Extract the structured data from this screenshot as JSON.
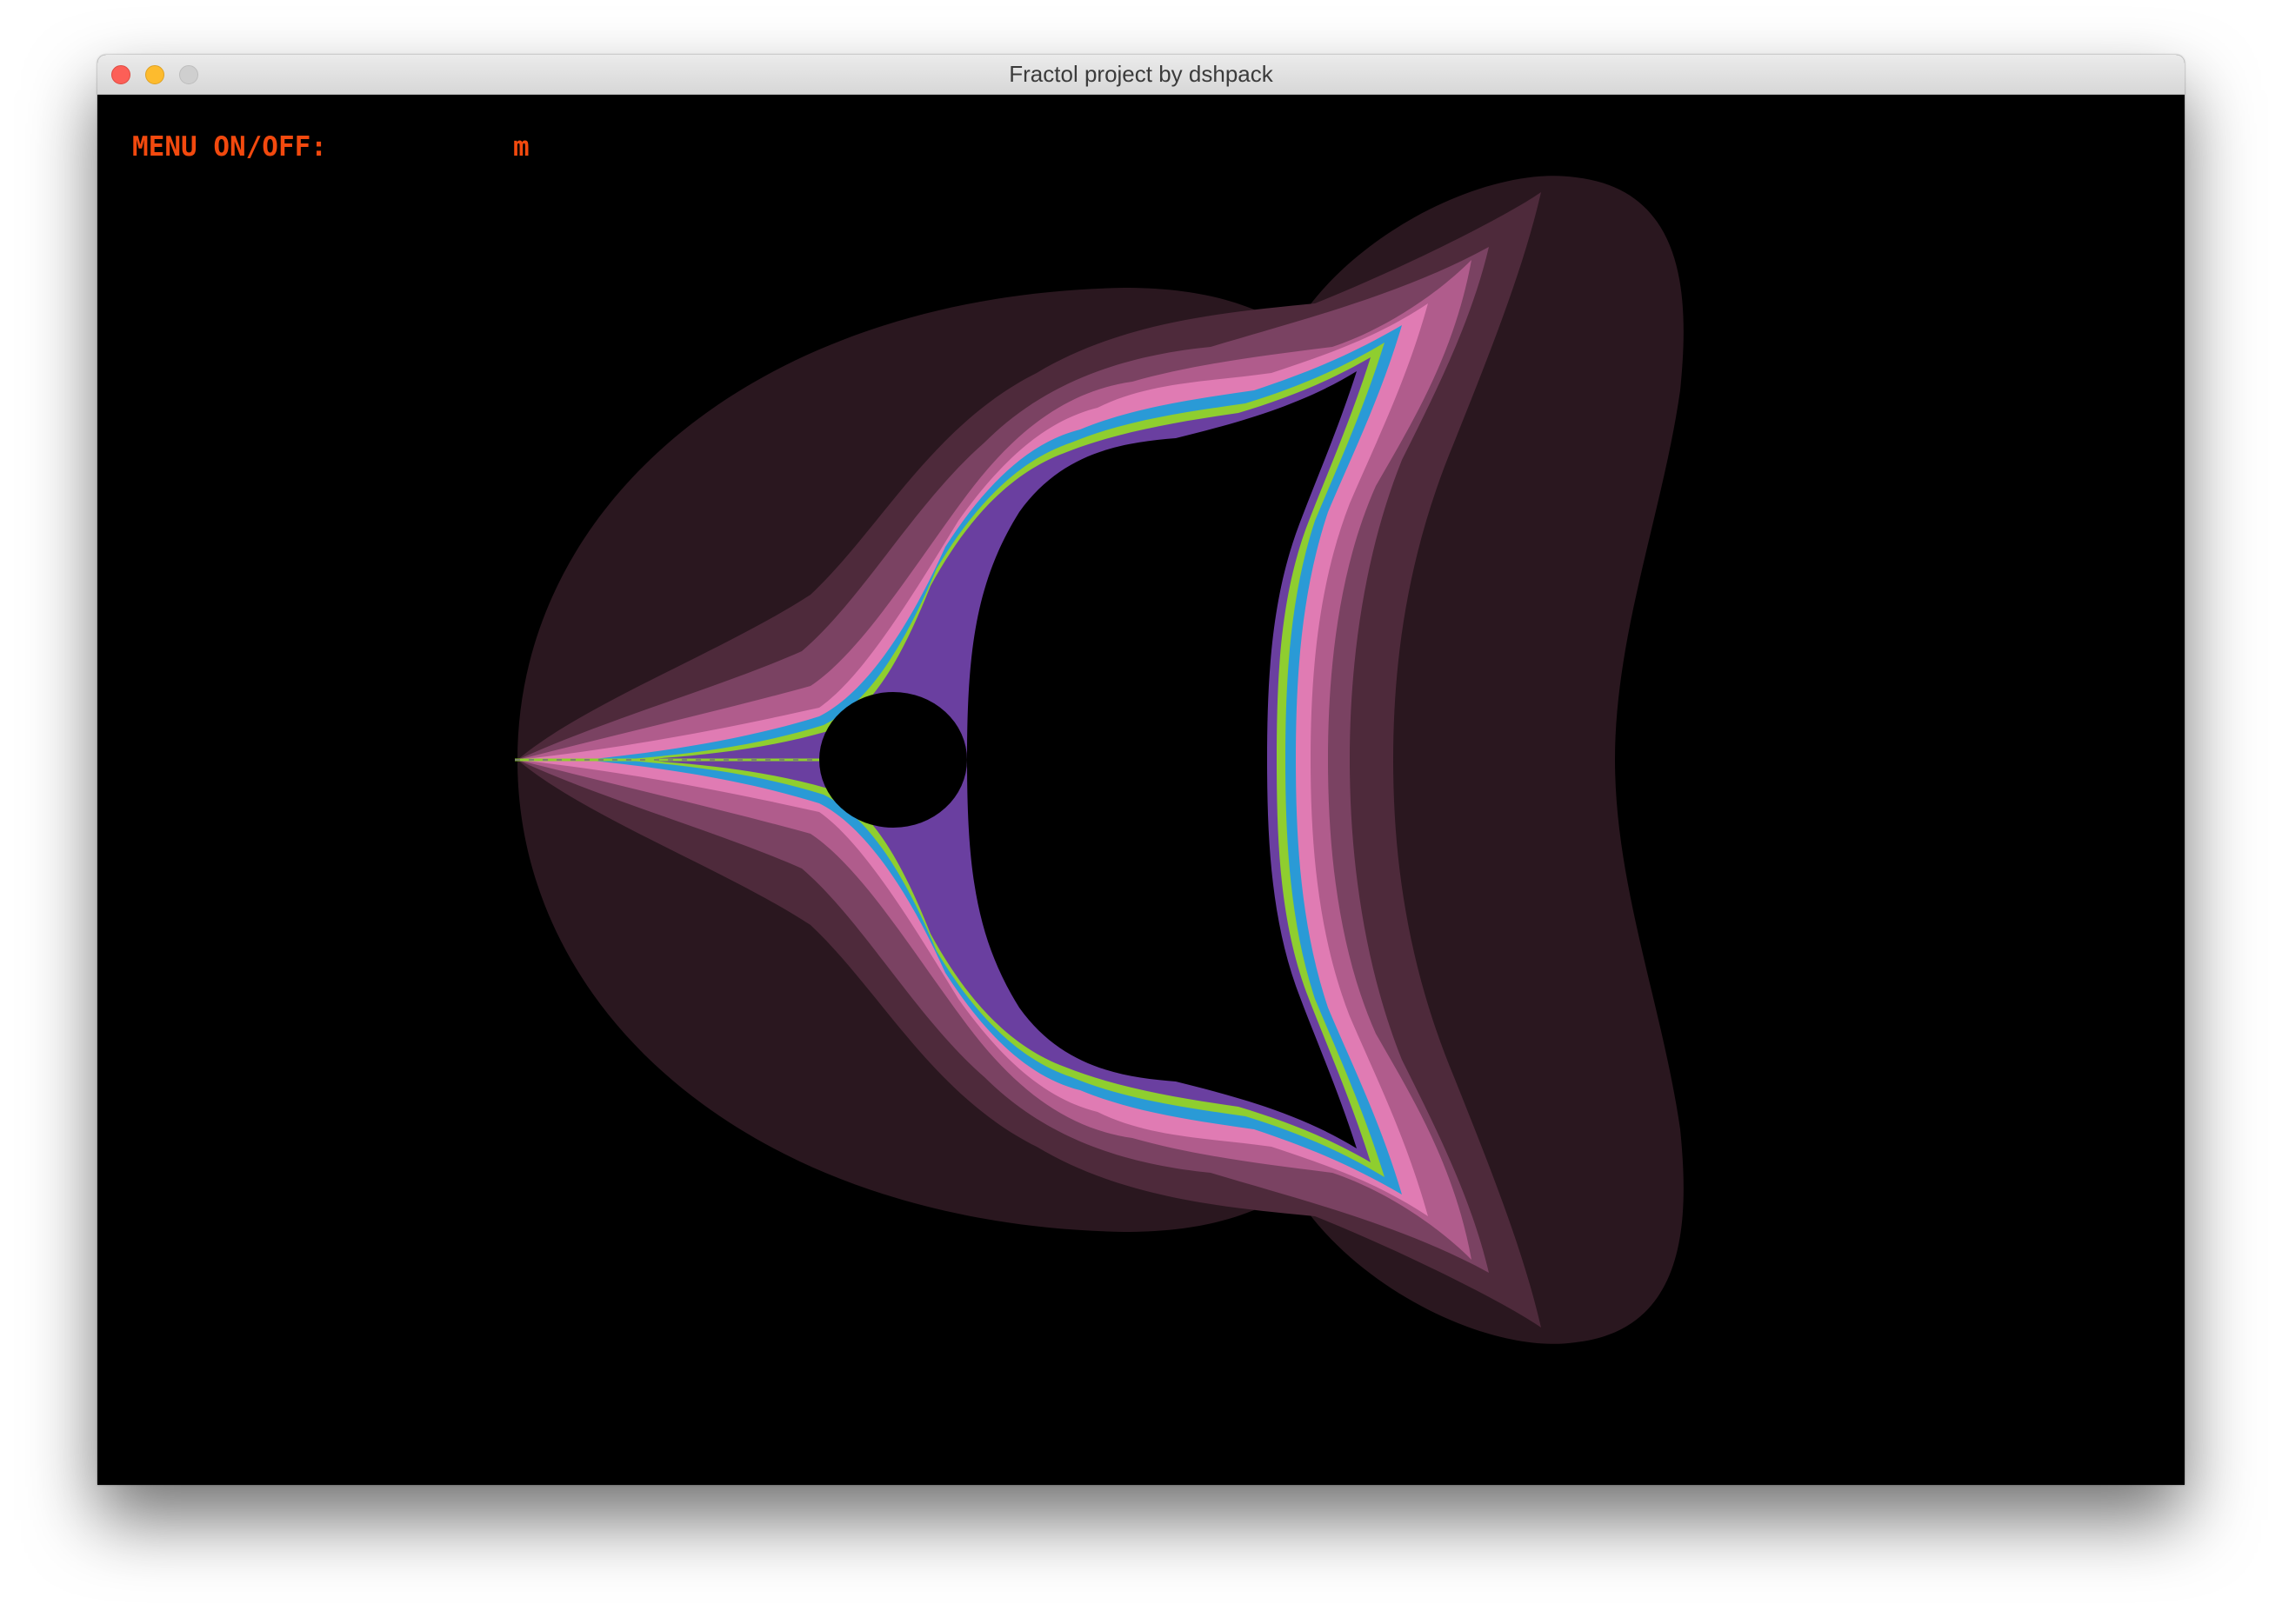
{
  "window": {
    "title": "Fractol project by dshpack"
  },
  "menu": {
    "label": "MENU ON/OFF:",
    "key": "m",
    "text_color": "#f2490e"
  },
  "fractal": {
    "background_color": "#000000",
    "palette": [
      "#2a171f",
      "#4e2a3b",
      "#7a4262",
      "#b05c8c",
      "#e07bb3",
      "#2a9ad6",
      "#8fce2f",
      "#6a3fa0"
    ]
  },
  "icons": {
    "close": "close-icon",
    "minimize": "minimize-icon",
    "zoom": "zoom-icon"
  }
}
